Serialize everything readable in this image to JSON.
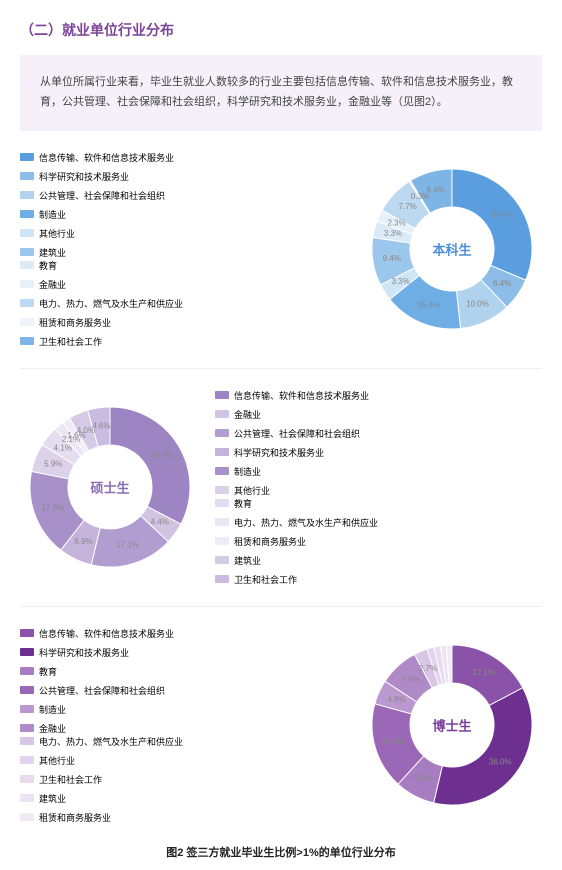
{
  "title": "（二）就业单位行业分布",
  "description": "从单位所属行业来看，毕业生就业人数较多的行业主要包括信息传输、软件和信息技术服务业，教育，公共管理、社会保障和社会组织，科学研究和技术服务业，金融业等（见图2）。",
  "caption": "图2 签三方就业毕业生比例>1%的单位行业分布",
  "charts": [
    {
      "center": "本科生",
      "center_color": "#4a8fd8",
      "layout": "right-chart",
      "legend_cols": [
        [
          "信息传输、软件和信息技术服务业",
          "科学研究和技术服务业",
          "公共管理、社会保障和社会组织",
          "制造业",
          "其他行业",
          "建筑业"
        ],
        [
          "教育",
          "金融业",
          "电力、热力、燃气及水生产和供应业",
          "租赁和商务服务业",
          "卫生和社会工作"
        ]
      ],
      "slices": [
        {
          "v": 30.4,
          "c": "#5a9ee0",
          "l": "30.4%"
        },
        {
          "v": 6.4,
          "c": "#8cbce8",
          "l": "6.4%"
        },
        {
          "v": 10.0,
          "c": "#afd2ef",
          "l": "10.0%"
        },
        {
          "v": 15.4,
          "c": "#6faee5",
          "l": "15.4%"
        },
        {
          "v": 3.3,
          "c": "#cfe4f5",
          "l": "3.3%"
        },
        {
          "v": 9.4,
          "c": "#9cc7ec",
          "l": "9.4%"
        },
        {
          "v": 3.3,
          "c": "#dbeaf7",
          "l": "3.3%"
        },
        {
          "v": 2.3,
          "c": "#e5f0f9",
          "l": "2.3%"
        },
        {
          "v": 7.7,
          "c": "#bcd9f1",
          "l": "7.7%"
        },
        {
          "v": 0.3,
          "c": "#edf4fb",
          "l": "0.3%"
        },
        {
          "v": 8.4,
          "c": "#7db5e7",
          "l": "8.4%"
        }
      ]
    },
    {
      "center": "硕士生",
      "center_color": "#8a6db3",
      "layout": "left-chart",
      "legend_cols": [
        [
          "信息传输、软件和信息技术服务业",
          "金融业",
          "公共管理、社会保障和社会组织",
          "科学研究和技术服务业",
          "制造业",
          "其他行业"
        ],
        [
          "教育",
          "电力、热力、燃气及水生产和供应业",
          "租赁和商务服务业",
          "建筑业",
          "卫生和社会工作"
        ]
      ],
      "slices": [
        {
          "v": 33.3,
          "c": "#9d85c4",
          "l": "33.3%"
        },
        {
          "v": 4.4,
          "c": "#d0c4e2",
          "l": "4.4%"
        },
        {
          "v": 17.1,
          "c": "#b29dd0",
          "l": "17.1%"
        },
        {
          "v": 6.9,
          "c": "#c4b3da",
          "l": "6.9%"
        },
        {
          "v": 17.9,
          "c": "#a890c9",
          "l": "17.9%"
        },
        {
          "v": 5.9,
          "c": "#dbd1e9",
          "l": "5.9%"
        },
        {
          "v": 4.1,
          "c": "#e4dcf0",
          "l": "4.1%"
        },
        {
          "v": 2.1,
          "c": "#ece6f4",
          "l": "2.1%"
        },
        {
          "v": 1.6,
          "c": "#f0ebf6",
          "l": "1.6%"
        },
        {
          "v": 4.0,
          "c": "#d6cbe6",
          "l": "4.0%"
        },
        {
          "v": 4.6,
          "c": "#cabbe0",
          "l": "4.6%"
        }
      ]
    },
    {
      "center": "博士生",
      "center_color": "#7a3f9c",
      "layout": "right-chart",
      "legend_cols": [
        [
          "信息传输、软件和信息技术服务业",
          "科学研究和技术服务业",
          "教育",
          "公共管理、社会保障和社会组织",
          "制造业",
          "金融业"
        ],
        [
          "电力、热力、燃气及水生产和供应业",
          "其他行业",
          "卫生和社会工作",
          "建筑业",
          "租赁和商务服务业"
        ]
      ],
      "slices": [
        {
          "v": 17.1,
          "c": "#8a52a8",
          "l": "17.1%"
        },
        {
          "v": 36.0,
          "c": "#6d3090",
          "l": "36.0%"
        },
        {
          "v": 8.0,
          "c": "#a77cc0",
          "l": "8.0%"
        },
        {
          "v": 17.3,
          "c": "#9a68b6",
          "l": "17.3%"
        },
        {
          "v": 4.9,
          "c": "#bb98cf",
          "l": "4.9%"
        },
        {
          "v": 7.9,
          "c": "#b08ac7",
          "l": "7.9%"
        },
        {
          "v": 2.7,
          "c": "#d9c5e4",
          "l": "2.7%"
        },
        {
          "v": 1.4,
          "c": "#e3d3ec",
          "l": ""
        },
        {
          "v": 1.3,
          "c": "#e8dbef",
          "l": ""
        },
        {
          "v": 1.2,
          "c": "#ede3f2",
          "l": ""
        },
        {
          "v": 1.1,
          "c": "#f1eaf5",
          "l": ""
        }
      ]
    }
  ]
}
